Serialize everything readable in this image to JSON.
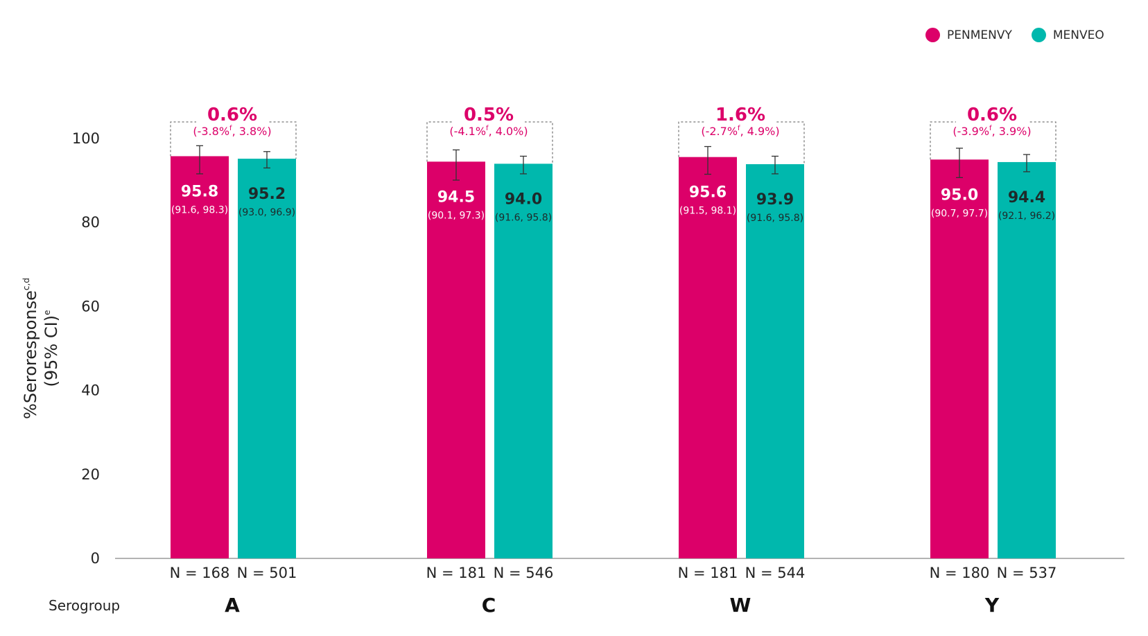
{
  "legend": [
    {
      "label": "PENMENVY",
      "color": "#dc0069"
    },
    {
      "label": "MENVEO",
      "color": "#00b8ad"
    }
  ],
  "serogroup_label": "Serogroup",
  "ylabel": {
    "main": "%Seroresponse",
    "main_sup": "c,d",
    "sub": "(95% CI)",
    "sub_sup": "e"
  },
  "colors": {
    "penmenvy": "#dc0069",
    "menveo": "#00b8ad",
    "diff": "#dc0069"
  },
  "chart_data": {
    "type": "bar",
    "categories": [
      "A",
      "C",
      "W",
      "Y"
    ],
    "ylim": [
      0,
      100
    ],
    "yticks": [
      0,
      20,
      40,
      60,
      80,
      100
    ],
    "series": [
      {
        "name": "PENMENVY",
        "values": [
          95.8,
          94.5,
          95.6,
          95.0
        ],
        "ci": [
          [
            91.6,
            98.3
          ],
          [
            90.1,
            97.3
          ],
          [
            91.5,
            98.1
          ],
          [
            90.7,
            97.7
          ]
        ],
        "ci_labels": [
          "(91.6, 98.3)",
          "(90.1, 97.3)",
          "(91.5, 98.1)",
          "(90.7, 97.7)"
        ],
        "n_labels": [
          "N = 168",
          "N = 181",
          "N = 181",
          "N = 180"
        ]
      },
      {
        "name": "MENVEO",
        "values": [
          95.2,
          94.0,
          93.9,
          94.4
        ],
        "ci": [
          [
            93.0,
            96.9
          ],
          [
            91.6,
            95.8
          ],
          [
            91.6,
            95.8
          ],
          [
            92.1,
            96.2
          ]
        ],
        "ci_labels": [
          "(93.0, 96.9)",
          "(91.6, 95.8)",
          "(91.6, 95.8)",
          "(92.1, 96.2)"
        ],
        "n_labels": [
          "N = 501",
          "N = 546",
          "N = 544",
          "N = 537"
        ]
      }
    ],
    "differences": [
      {
        "value": "0.6%",
        "ci_low": "-3.8%",
        "ci_high": "3.8%)",
        "sup": "f"
      },
      {
        "value": "0.5%",
        "ci_low": "-4.1%",
        "ci_high": "4.0%)",
        "sup": "f"
      },
      {
        "value": "1.6%",
        "ci_low": "-2.7%",
        "ci_high": "4.9%)",
        "sup": "f"
      },
      {
        "value": "0.6%",
        "ci_low": "-3.9%",
        "ci_high": "3.9%)",
        "sup": "f"
      }
    ]
  }
}
